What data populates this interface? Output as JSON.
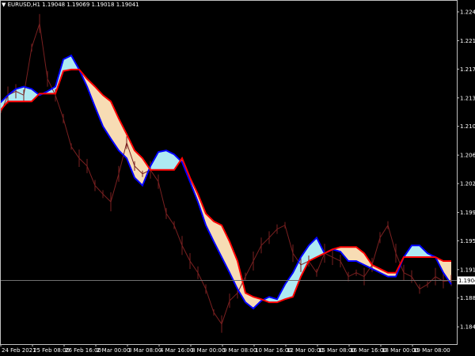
{
  "window": {
    "title_symbol": "EURUSD,H1",
    "ohlc": "1.19048 1.19069 1.19018 1.19041",
    "menu_icon": "triangle-down-icon"
  },
  "colors": {
    "background": "#000000",
    "price": "#7a2020",
    "cloud_line_a": "#0000ff",
    "cloud_line_b": "#ff0000",
    "cloud_bullish": "#aee9f2",
    "cloud_bearish": "#f7dcb4",
    "axis": "#c0c0c0",
    "current_price_line": "#707070"
  },
  "chart_data": {
    "type": "line",
    "title": "",
    "symbol": "EURUSD,H1",
    "ylim": [
      1.1822,
      1.2264
    ],
    "y_ticks": [
      "1.22490",
      "1.22120",
      "1.21755",
      "1.21385",
      "1.21020",
      "1.20650",
      "1.20285",
      "1.19915",
      "1.19550",
      "1.19180",
      "1.18815",
      "1.18445"
    ],
    "x_ticks": [
      "24 Feb 2021",
      "25 Feb 08:00",
      "26 Feb 16:00",
      "2 Mar 00:00",
      "3 Mar 08:00",
      "4 Mar 16:00",
      "8 Mar 00:00",
      "9 Mar 08:00",
      "10 Mar 16:00",
      "12 Mar 00:00",
      "15 Mar 08:00",
      "16 Mar 16:00",
      "18 Mar 00:00",
      "19 Mar 08:00"
    ],
    "current_price": "1.19041",
    "grid": false,
    "series": [
      {
        "values": [
          1.2117,
          1.2142,
          1.2147,
          1.2142,
          1.2203,
          1.2234,
          1.2163,
          1.2142,
          1.2112,
          1.2076,
          1.2061,
          1.2051,
          1.2026,
          1.2015,
          1.2005,
          1.2041,
          1.2081,
          1.2051,
          1.2041,
          1.2046,
          1.2031,
          1.199,
          1.1975,
          1.1949,
          1.1929,
          1.1914,
          1.1893,
          1.1863,
          1.1848,
          1.1878,
          1.1888,
          1.1909,
          1.1929,
          1.1949,
          1.1959,
          1.197,
          1.1975,
          1.1939,
          1.1924,
          1.1929,
          1.1914,
          1.1939,
          1.1934,
          1.1929,
          1.1909,
          1.1914,
          1.1909,
          1.1924,
          1.1959,
          1.1975,
          1.1939,
          1.1914,
          1.1909,
          1.1893,
          1.1899,
          1.1909,
          1.1903,
          1.1904
        ]
      },
      {
        "values": [
          1.2132,
          1.2142,
          1.215,
          1.2153,
          1.215,
          1.2142,
          1.2147,
          1.2153,
          1.2188,
          1.2193,
          1.2175,
          1.2153,
          1.2127,
          1.2102,
          1.2086,
          1.2071,
          1.2061,
          1.2036,
          1.2026,
          1.2051,
          1.2069,
          1.2071,
          1.2066,
          1.2056,
          1.2031,
          1.2005,
          1.1975,
          1.1954,
          1.1934,
          1.1914,
          1.1893,
          1.1876,
          1.1868,
          1.1878,
          1.1883,
          1.188,
          1.1899,
          1.1914,
          1.1934,
          1.1949,
          1.1959,
          1.1939,
          1.1944,
          1.1941,
          1.1929,
          1.1929,
          1.1924,
          1.1919,
          1.1914,
          1.1909,
          1.1909,
          1.1934,
          1.1949,
          1.1949,
          1.1939,
          1.1934,
          1.1914,
          1.1899
        ]
      },
      {
        "values": [
          1.2122,
          1.2134,
          1.2134,
          1.2134,
          1.2134,
          1.2144,
          1.2144,
          1.2144,
          1.2173,
          1.2175,
          1.2175,
          1.2163,
          1.2153,
          1.2142,
          1.2134,
          1.2112,
          1.2092,
          1.2071,
          1.2061,
          1.2046,
          1.2046,
          1.2046,
          1.2046,
          1.2061,
          1.2036,
          1.2015,
          1.199,
          1.198,
          1.1975,
          1.1954,
          1.1929,
          1.1888,
          1.1883,
          1.188,
          1.1876,
          1.1876,
          1.188,
          1.1883,
          1.1909,
          1.1929,
          1.1934,
          1.1939,
          1.1944,
          1.1947,
          1.1947,
          1.1947,
          1.1939,
          1.1924,
          1.1919,
          1.1914,
          1.1914,
          1.1934,
          1.1934,
          1.1934,
          1.1934,
          1.1934,
          1.1929,
          1.1929
        ]
      }
    ]
  }
}
